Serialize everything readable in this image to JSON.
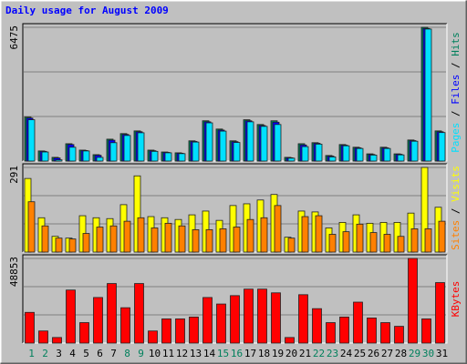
{
  "chart_data": {
    "type": "bar",
    "title": "Daily usage for August 2009",
    "categories": [
      "1",
      "2",
      "3",
      "4",
      "5",
      "6",
      "7",
      "8",
      "9",
      "10",
      "11",
      "12",
      "13",
      "14",
      "15",
      "16",
      "17",
      "18",
      "19",
      "20",
      "21",
      "22",
      "23",
      "24",
      "25",
      "26",
      "27",
      "28",
      "29",
      "30",
      "31"
    ],
    "highlight_categories": [
      0,
      1,
      7,
      8,
      14,
      15,
      21,
      22,
      28,
      29
    ],
    "highlight_color": "#00805c",
    "legend_separator": " / ",
    "panels": [
      {
        "ylim": [
          0,
          6475
        ],
        "yticks": [
          6475
        ],
        "series": [
          {
            "name": "Hits",
            "color": "#00805c",
            "values": [
              2130,
              490,
              180,
              840,
              530,
              310,
              1060,
              1330,
              1460,
              530,
              440,
              400,
              980,
              1950,
              1550,
              980,
              2000,
              1770,
              1950,
              180,
              840,
              890,
              270,
              800,
              670,
              350,
              670,
              350,
              1020,
              6475,
              1460
            ]
          },
          {
            "name": "Files",
            "color": "#0000ff",
            "values": [
              2080,
              470,
              150,
              800,
              510,
              280,
              1010,
              1290,
              1420,
              500,
              420,
              380,
              950,
              1900,
              1500,
              940,
              1950,
              1720,
              1880,
              160,
              780,
              860,
              240,
              770,
              640,
              320,
              640,
              330,
              990,
              6420,
              1420
            ]
          },
          {
            "name": "Pages",
            "color": "#00e0ff",
            "values": [
              2000,
              440,
              60,
              670,
              490,
              180,
              890,
              1240,
              1370,
              470,
              400,
              360,
              920,
              1850,
              1450,
              900,
              1900,
              1680,
              1770,
              140,
              700,
              820,
              200,
              740,
              610,
              290,
              610,
              300,
              960,
              6390,
              1380
            ]
          }
        ]
      },
      {
        "ylim": [
          0,
          291
        ],
        "yticks": [
          291
        ],
        "series": [
          {
            "name": "Visits",
            "color": "#ffff00",
            "values": [
              253,
              118,
              54,
              48,
              125,
              118,
              115,
              163,
              262,
              122,
              118,
              112,
              128,
              141,
              109,
              160,
              166,
              179,
              198,
              51,
              141,
              138,
              83,
              102,
              128,
              99,
              102,
              102,
              134,
              291,
              154
            ]
          },
          {
            "name": "Sites",
            "color": "#ff8000",
            "values": [
              173,
              90,
              48,
              45,
              64,
              86,
              90,
              106,
              118,
              83,
              99,
              90,
              77,
              77,
              80,
              86,
              112,
              118,
              160,
              48,
              122,
              125,
              61,
              70,
              96,
              67,
              61,
              54,
              80,
              80,
              106
            ]
          }
        ]
      },
      {
        "ylim": [
          0,
          48853
        ],
        "yticks": [
          48853
        ],
        "series": [
          {
            "name": "KBytes",
            "color": "#ff0000",
            "values": [
              17720,
              6980,
              3220,
              30610,
              11810,
              26310,
              34370,
              20410,
              34370,
              6980,
              13960,
              13960,
              15040,
              26310,
              22550,
              27390,
              31150,
              31150,
              29000,
              3220,
              27930,
              19870,
              11810,
              15040,
              23630,
              14500,
              11810,
              9670,
              48853,
              13960,
              34910
            ]
          }
        ]
      }
    ]
  }
}
